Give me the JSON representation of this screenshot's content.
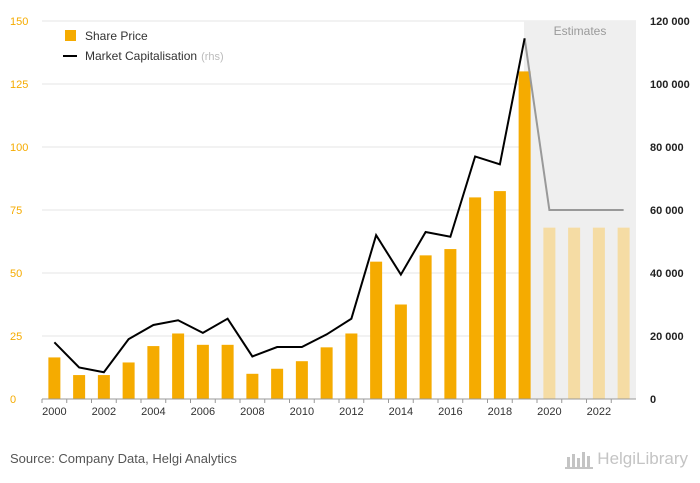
{
  "chart_data": {
    "type": "bar+line",
    "x": [
      2000,
      2001,
      2002,
      2003,
      2004,
      2005,
      2006,
      2007,
      2008,
      2009,
      2010,
      2011,
      2012,
      2013,
      2014,
      2015,
      2016,
      2017,
      2018,
      2019,
      2020,
      2021,
      2022,
      2023
    ],
    "x_tick_labels": [
      "2000",
      "2002",
      "2004",
      "2006",
      "2008",
      "2010",
      "2012",
      "2014",
      "2016",
      "2018",
      "2020",
      "2022"
    ],
    "series": [
      {
        "name": "Share Price",
        "kind": "bar",
        "axis": "left",
        "color": "#f5ab00",
        "values": [
          16.5,
          9.5,
          9.5,
          14.5,
          21,
          26,
          21.5,
          21.5,
          10,
          12,
          15,
          20.5,
          26,
          54.5,
          37.5,
          57,
          59.5,
          80,
          82.5,
          130,
          68,
          68,
          68,
          68
        ]
      },
      {
        "name": "Market Capitalisation",
        "name_suffix": "(rhs)",
        "kind": "line",
        "axis": "right",
        "color": "#000000",
        "values": [
          18000,
          10000,
          8500,
          19000,
          23500,
          25000,
          21000,
          25500,
          13500,
          16500,
          16500,
          20500,
          25500,
          52000,
          39500,
          53000,
          51500,
          77000,
          74500,
          114500,
          60000,
          60000,
          60000,
          60000
        ]
      }
    ],
    "estimates": {
      "label": "Estimates",
      "from_year": 2020,
      "bar_color": "#f5dca4",
      "line_color": "#999999",
      "shade_color": "#efefef"
    },
    "left_axis": {
      "ylim": [
        0,
        150
      ],
      "ticks": [
        "0",
        "25",
        "50",
        "75",
        "100",
        "125",
        "150"
      ],
      "color": "#f5ab00"
    },
    "right_axis": {
      "ylim": [
        0,
        120000
      ],
      "ticks": [
        "0",
        "20 000",
        "40 000",
        "60 000",
        "80 000",
        "100 000",
        "120 000"
      ]
    },
    "legend_position": "top-left",
    "grid": true
  },
  "footer": {
    "source": "Source: Company Data, Helgi Analytics",
    "brand": "HelgiLibrary"
  }
}
